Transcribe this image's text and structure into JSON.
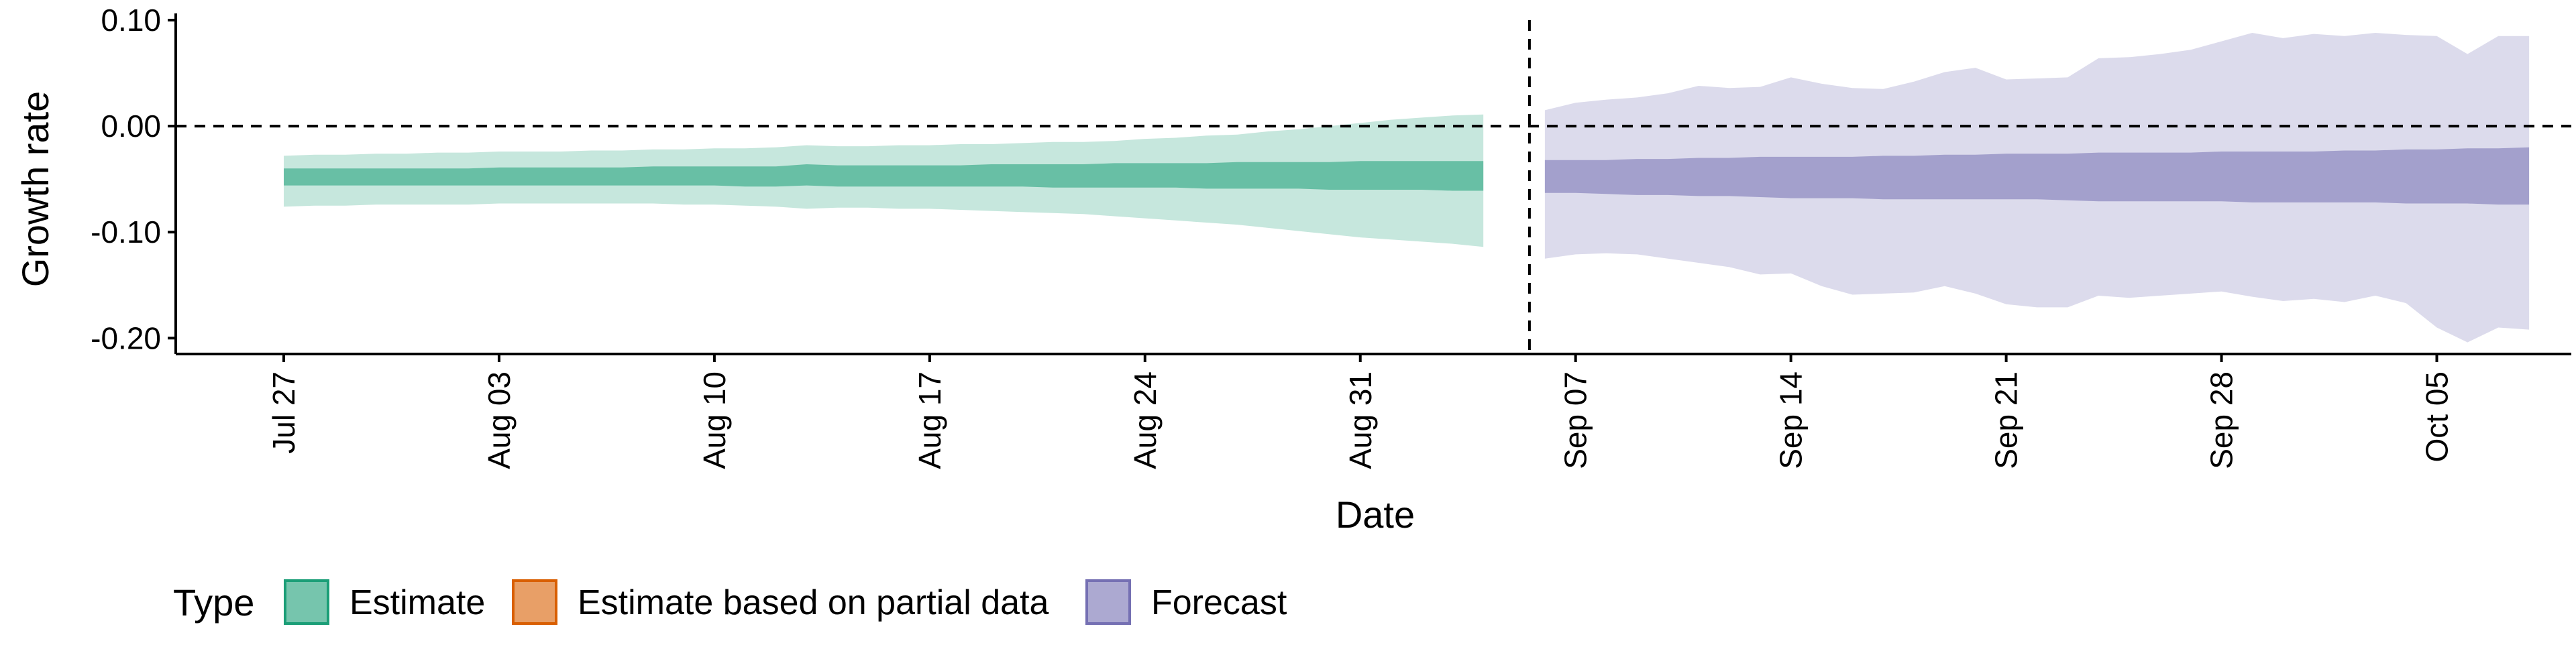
{
  "chart_data": {
    "type": "area",
    "title": "",
    "xlabel": "Date",
    "ylabel": "Growth rate",
    "ylim": [
      -0.215,
      0.1
    ],
    "yticks": [
      0.1,
      0.0,
      -0.1,
      -0.2
    ],
    "ytick_labels": [
      "0.10",
      "0.00",
      "-0.10",
      "-0.20"
    ],
    "xtick_days": [
      0,
      7,
      14,
      21,
      28,
      35,
      42,
      49,
      56,
      63,
      70
    ],
    "xtick_labels": [
      "Jul 27",
      "Aug 03",
      "Aug 10",
      "Aug 17",
      "Aug 24",
      "Aug 31",
      "Sep 07",
      "Sep 14",
      "Sep 21",
      "Sep 28",
      "Oct 05"
    ],
    "grid": false,
    "hline_y": 0,
    "vline_day": 40.5,
    "legend_position": "bottom-left",
    "legend_title": "Type",
    "legend": [
      {
        "label": "Estimate",
        "color": "#1b9e77"
      },
      {
        "label": "Estimate based on partial data",
        "color": "#d95f02"
      },
      {
        "label": "Forecast",
        "color": "#7570b3"
      }
    ],
    "series": [
      {
        "name": "Estimate",
        "color": "#1b9e77",
        "x_day_start": 0,
        "outer_upper": [
          -0.028,
          -0.027,
          -0.027,
          -0.026,
          -0.026,
          -0.025,
          -0.025,
          -0.024,
          -0.024,
          -0.024,
          -0.023,
          -0.023,
          -0.022,
          -0.022,
          -0.021,
          -0.021,
          -0.02,
          -0.018,
          -0.019,
          -0.019,
          -0.018,
          -0.018,
          -0.017,
          -0.017,
          -0.016,
          -0.015,
          -0.015,
          -0.014,
          -0.012,
          -0.011,
          -0.009,
          -0.008,
          -0.005,
          -0.003,
          0.0,
          0.003,
          0.006,
          0.008,
          0.01,
          0.011
        ],
        "inner_upper": [
          -0.04,
          -0.04,
          -0.04,
          -0.04,
          -0.04,
          -0.04,
          -0.04,
          -0.039,
          -0.039,
          -0.039,
          -0.039,
          -0.039,
          -0.038,
          -0.038,
          -0.038,
          -0.038,
          -0.038,
          -0.036,
          -0.037,
          -0.037,
          -0.037,
          -0.037,
          -0.037,
          -0.036,
          -0.036,
          -0.036,
          -0.036,
          -0.035,
          -0.035,
          -0.035,
          -0.035,
          -0.034,
          -0.034,
          -0.034,
          -0.034,
          -0.033,
          -0.033,
          -0.033,
          -0.033,
          -0.033
        ],
        "inner_lower": [
          -0.056,
          -0.056,
          -0.056,
          -0.056,
          -0.056,
          -0.056,
          -0.056,
          -0.056,
          -0.056,
          -0.056,
          -0.056,
          -0.056,
          -0.056,
          -0.056,
          -0.056,
          -0.057,
          -0.057,
          -0.056,
          -0.057,
          -0.057,
          -0.057,
          -0.057,
          -0.057,
          -0.057,
          -0.057,
          -0.058,
          -0.058,
          -0.058,
          -0.058,
          -0.058,
          -0.059,
          -0.059,
          -0.059,
          -0.059,
          -0.06,
          -0.06,
          -0.06,
          -0.06,
          -0.061,
          -0.061
        ],
        "outer_lower": [
          -0.076,
          -0.075,
          -0.075,
          -0.074,
          -0.074,
          -0.074,
          -0.074,
          -0.073,
          -0.073,
          -0.073,
          -0.073,
          -0.073,
          -0.073,
          -0.074,
          -0.074,
          -0.075,
          -0.076,
          -0.078,
          -0.077,
          -0.077,
          -0.078,
          -0.078,
          -0.079,
          -0.08,
          -0.081,
          -0.082,
          -0.083,
          -0.085,
          -0.087,
          -0.089,
          -0.091,
          -0.093,
          -0.096,
          -0.099,
          -0.102,
          -0.105,
          -0.107,
          -0.109,
          -0.111,
          -0.114
        ]
      },
      {
        "name": "Forecast",
        "color": "#7570b3",
        "x_day_start": 41,
        "outer_upper": [
          0.015,
          0.022,
          0.025,
          0.027,
          0.031,
          0.038,
          0.036,
          0.037,
          0.046,
          0.04,
          0.036,
          0.035,
          0.042,
          0.051,
          0.055,
          0.044,
          0.045,
          0.046,
          0.064,
          0.065,
          0.068,
          0.072,
          0.08,
          0.088,
          0.083,
          0.087,
          0.085,
          0.088,
          0.086,
          0.085,
          0.068,
          0.085,
          0.085
        ],
        "inner_upper": [
          -0.032,
          -0.032,
          -0.032,
          -0.031,
          -0.031,
          -0.03,
          -0.03,
          -0.029,
          -0.029,
          -0.029,
          -0.029,
          -0.028,
          -0.028,
          -0.027,
          -0.027,
          -0.026,
          -0.026,
          -0.026,
          -0.025,
          -0.025,
          -0.025,
          -0.025,
          -0.024,
          -0.024,
          -0.024,
          -0.024,
          -0.023,
          -0.023,
          -0.022,
          -0.022,
          -0.021,
          -0.021,
          -0.02
        ],
        "inner_lower": [
          -0.063,
          -0.063,
          -0.064,
          -0.065,
          -0.065,
          -0.066,
          -0.066,
          -0.067,
          -0.068,
          -0.068,
          -0.068,
          -0.069,
          -0.069,
          -0.069,
          -0.069,
          -0.069,
          -0.069,
          -0.07,
          -0.071,
          -0.071,
          -0.071,
          -0.071,
          -0.071,
          -0.072,
          -0.072,
          -0.072,
          -0.072,
          -0.072,
          -0.073,
          -0.073,
          -0.073,
          -0.074,
          -0.074
        ],
        "outer_lower": [
          -0.125,
          -0.121,
          -0.12,
          -0.121,
          -0.125,
          -0.129,
          -0.133,
          -0.14,
          -0.139,
          -0.151,
          -0.159,
          -0.158,
          -0.157,
          -0.151,
          -0.158,
          -0.168,
          -0.171,
          -0.171,
          -0.16,
          -0.162,
          -0.16,
          -0.158,
          -0.156,
          -0.161,
          -0.165,
          -0.163,
          -0.166,
          -0.16,
          -0.167,
          -0.19,
          -0.204,
          -0.19,
          -0.192
        ]
      }
    ]
  }
}
